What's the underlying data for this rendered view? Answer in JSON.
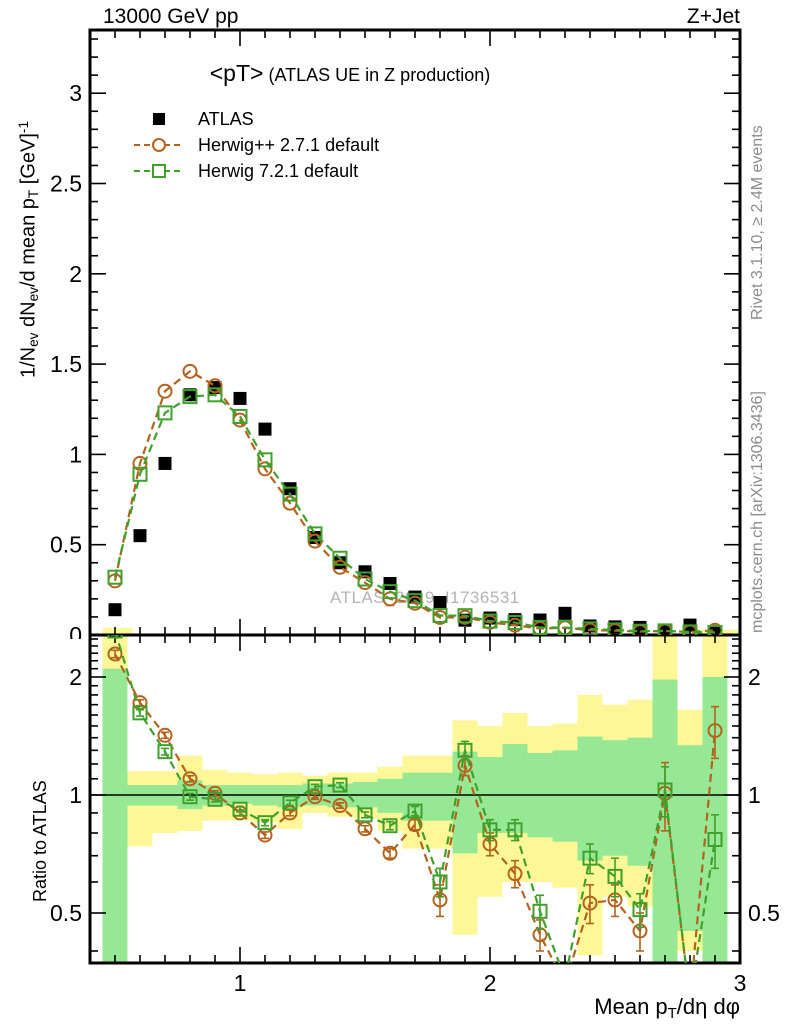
{
  "header": {
    "left_title": "13000 GeV pp",
    "right_title": "Z+Jet"
  },
  "plot_title": {
    "main": "<pT>",
    "sub": "(ATLAS UE in Z production)"
  },
  "legend": {
    "items": [
      {
        "label": "ATLAS",
        "marker": "filled-square",
        "color": "#000000"
      },
      {
        "label": "Herwig++ 2.7.1 default",
        "marker": "open-circle-dashed",
        "color": "#b5621d"
      },
      {
        "label": "Herwig 7.2.1 default",
        "marker": "open-square-dashed",
        "color": "#3fa12c"
      }
    ]
  },
  "side_notes": {
    "top": "Rivet 3.1.10, ≥ 2.4M events",
    "bottom": "mcplots.cern.ch [arXiv:1306.3436]"
  },
  "watermark": "ATLAS_2019_I1736531",
  "colors": {
    "atlas": "#000000",
    "herwigpp": "#b5621d",
    "herwig7": "#3fa12c",
    "band_yellow": "#fdf798",
    "band_green": "#97e894",
    "gray_text": "#8c8c8c",
    "watermark": "#b4b4b4"
  },
  "axes": {
    "x_label_parts": [
      {
        "text": "Mean p"
      },
      {
        "text": "T",
        "style": "sub"
      },
      {
        "text": "/dη dφ"
      }
    ],
    "main_y_label_parts": [
      {
        "text": "1/N"
      },
      {
        "text": "ev",
        "style": "sub"
      },
      {
        "text": " dN"
      },
      {
        "text": "ev",
        "style": "sub"
      },
      {
        "text": "/d mean p"
      },
      {
        "text": "T",
        "style": "sub"
      },
      {
        "text": " [GeV]"
      },
      {
        "text": "-1",
        "style": "sup"
      }
    ],
    "ratio_y_label": "Ratio to ATLAS"
  },
  "chart_data": [
    {
      "type": "line",
      "panel": "main",
      "title": "<pT> (ATLAS UE in Z production)",
      "xlabel": "Mean pT/dη dφ",
      "ylabel": "1/N_ev dN_ev/d mean p_T [GeV]^-1",
      "xlim": [
        0.4,
        3.0
      ],
      "ylim": [
        0,
        3.35
      ],
      "grid": false,
      "x_ticks_labeled": [
        1,
        2,
        3
      ],
      "x_tick_labels": [
        "1",
        "2",
        "3"
      ],
      "y_ticks_labeled": [
        0,
        0.5,
        1,
        1.5,
        2,
        2.5,
        3
      ],
      "y_tick_labels": [
        "0",
        "0.5",
        "1",
        "1.5",
        "2",
        "2.5",
        "3"
      ],
      "x": [
        0.5,
        0.6,
        0.7,
        0.8,
        0.9,
        1.0,
        1.1,
        1.2,
        1.3,
        1.4,
        1.5,
        1.6,
        1.7,
        1.8,
        1.9,
        2.0,
        2.1,
        2.2,
        2.3,
        2.4,
        2.5,
        2.6,
        2.7,
        2.8,
        2.9
      ],
      "series": [
        {
          "name": "ATLAS",
          "style": "filled-square",
          "color": "#000000",
          "line": false,
          "values": [
            0.14,
            0.55,
            0.95,
            1.33,
            1.37,
            1.31,
            1.14,
            0.81,
            0.54,
            0.4,
            0.35,
            0.285,
            0.21,
            0.18,
            0.082,
            0.094,
            0.085,
            0.083,
            0.12,
            0.05,
            0.045,
            0.042,
            0.022,
            0.055,
            0.018
          ]
        },
        {
          "name": "Herwig++ 2.7.1 default",
          "style": "open-circle",
          "color": "#b5621d",
          "line": true,
          "values": [
            0.3,
            0.95,
            1.35,
            1.46,
            1.38,
            1.19,
            0.92,
            0.73,
            0.52,
            0.375,
            0.29,
            0.2,
            0.176,
            0.097,
            0.098,
            0.07,
            0.054,
            0.036,
            0.04,
            0.027,
            0.024,
            0.019,
            0.022,
            0.017,
            0.026
          ]
        },
        {
          "name": "Herwig 7.2.1 default",
          "style": "open-square",
          "color": "#3fa12c",
          "line": true,
          "values": [
            0.32,
            0.89,
            1.23,
            1.32,
            1.33,
            1.21,
            0.97,
            0.78,
            0.56,
            0.425,
            0.31,
            0.24,
            0.19,
            0.108,
            0.107,
            0.077,
            0.069,
            0.042,
            0.041,
            0.034,
            0.028,
            0.021,
            0.023,
            0.017,
            0.014
          ]
        }
      ],
      "bands": [
        {
          "x0": 0.45,
          "x1": 0.57,
          "lo": 0,
          "hi": 0.04,
          "color": "yellow"
        },
        {
          "x0": 2.8,
          "x1": 3.0,
          "lo": 0,
          "hi": 0.03,
          "color": "yellow"
        }
      ]
    },
    {
      "type": "line",
      "panel": "ratio",
      "ylabel": "Ratio to ATLAS",
      "yscale": "log",
      "xlim": [
        0.4,
        3.0
      ],
      "ylim": [
        0.373,
        2.56
      ],
      "ref_line": 1,
      "x_tick_labels": [
        "1",
        "2",
        "3"
      ],
      "y_ticks_labeled": [
        0.5,
        1,
        2
      ],
      "y_tick_labels": [
        "0.5",
        "1",
        "2"
      ],
      "x": [
        0.5,
        0.6,
        0.7,
        0.8,
        0.9,
        1.0,
        1.1,
        1.2,
        1.3,
        1.4,
        1.5,
        1.6,
        1.7,
        1.8,
        1.9,
        2.0,
        2.1,
        2.2,
        2.3,
        2.4,
        2.5,
        2.6,
        2.7,
        2.8,
        2.9
      ],
      "series": [
        {
          "name": "Herwig++ 2.7.1 default",
          "style": "open-circle",
          "color": "#b5621d",
          "line": true,
          "values": [
            2.29,
            1.72,
            1.42,
            1.1,
            1.01,
            0.9,
            0.79,
            0.9,
            0.99,
            0.94,
            0.82,
            0.71,
            0.84,
            0.54,
            1.19,
            0.75,
            0.63,
            0.44,
            0.33,
            0.53,
            0.54,
            0.45,
            1.01,
            0.3,
            1.46
          ],
          "errors": [
            0.05,
            0.03,
            0.025,
            0.02,
            0.015,
            0.015,
            0.015,
            0.015,
            0.015,
            0.015,
            0.015,
            0.02,
            0.025,
            0.05,
            0.07,
            0.05,
            0.05,
            0.04,
            0,
            0.06,
            0.05,
            0.05,
            0.2,
            0,
            0.22
          ]
        },
        {
          "name": "Herwig 7.2.1 default",
          "style": "open-square",
          "color": "#3fa12c",
          "line": true,
          "values": [
            2.62,
            1.62,
            1.29,
            0.99,
            0.975,
            0.92,
            0.85,
            0.955,
            1.05,
            1.06,
            0.89,
            0.835,
            0.91,
            0.6,
            1.3,
            0.815,
            0.815,
            0.505,
            0.34,
            0.69,
            0.62,
            0.51,
            1.03,
            0.3,
            0.77
          ],
          "errors": [
            0.06,
            0.03,
            0.025,
            0.02,
            0.015,
            0.015,
            0.015,
            0.015,
            0.015,
            0.015,
            0.015,
            0.02,
            0.025,
            0.05,
            0.07,
            0.05,
            0.05,
            0.05,
            0,
            0.06,
            0.07,
            0.05,
            0.15,
            0,
            0.12
          ]
        }
      ],
      "bands": {
        "bin_halfwidth": 0.05,
        "yellow": [
          [
            0.37,
            2.56
          ],
          [
            0.74,
            1.15
          ],
          [
            0.8,
            1.15
          ],
          [
            0.81,
            1.26
          ],
          [
            0.86,
            1.16
          ],
          [
            0.86,
            1.14
          ],
          [
            0.85,
            1.13
          ],
          [
            0.82,
            1.14
          ],
          [
            0.9,
            1.12
          ],
          [
            0.88,
            1.14
          ],
          [
            0.87,
            1.14
          ],
          [
            0.81,
            1.18
          ],
          [
            0.73,
            1.26
          ],
          [
            0.73,
            1.26
          ],
          [
            0.44,
            1.55
          ],
          [
            0.55,
            1.5
          ],
          [
            0.6,
            1.62
          ],
          [
            0.6,
            1.5
          ],
          [
            0.58,
            1.52
          ],
          [
            0.39,
            1.8
          ],
          [
            0.55,
            1.7
          ],
          [
            0.52,
            1.75
          ],
          [
            0.37,
            2.56
          ],
          [
            0.4,
            1.65
          ],
          [
            0.37,
            2.56
          ]
        ],
        "green": [
          [
            0.37,
            2.1
          ],
          [
            0.94,
            1.06
          ],
          [
            0.94,
            1.06
          ],
          [
            0.92,
            1.09
          ],
          [
            0.94,
            1.06
          ],
          [
            0.95,
            1.06
          ],
          [
            0.94,
            1.06
          ],
          [
            0.93,
            1.06
          ],
          [
            0.94,
            1.07
          ],
          [
            0.93,
            1.07
          ],
          [
            0.93,
            1.08
          ],
          [
            0.9,
            1.1
          ],
          [
            0.86,
            1.14
          ],
          [
            0.86,
            1.14
          ],
          [
            0.71,
            1.29
          ],
          [
            0.8,
            1.25
          ],
          [
            0.8,
            1.35
          ],
          [
            0.78,
            1.28
          ],
          [
            0.76,
            1.3
          ],
          [
            0.68,
            1.41
          ],
          [
            0.7,
            1.38
          ],
          [
            0.66,
            1.4
          ],
          [
            0.37,
            1.97
          ],
          [
            0.45,
            1.34
          ],
          [
            0.37,
            2.0
          ]
        ]
      }
    }
  ]
}
